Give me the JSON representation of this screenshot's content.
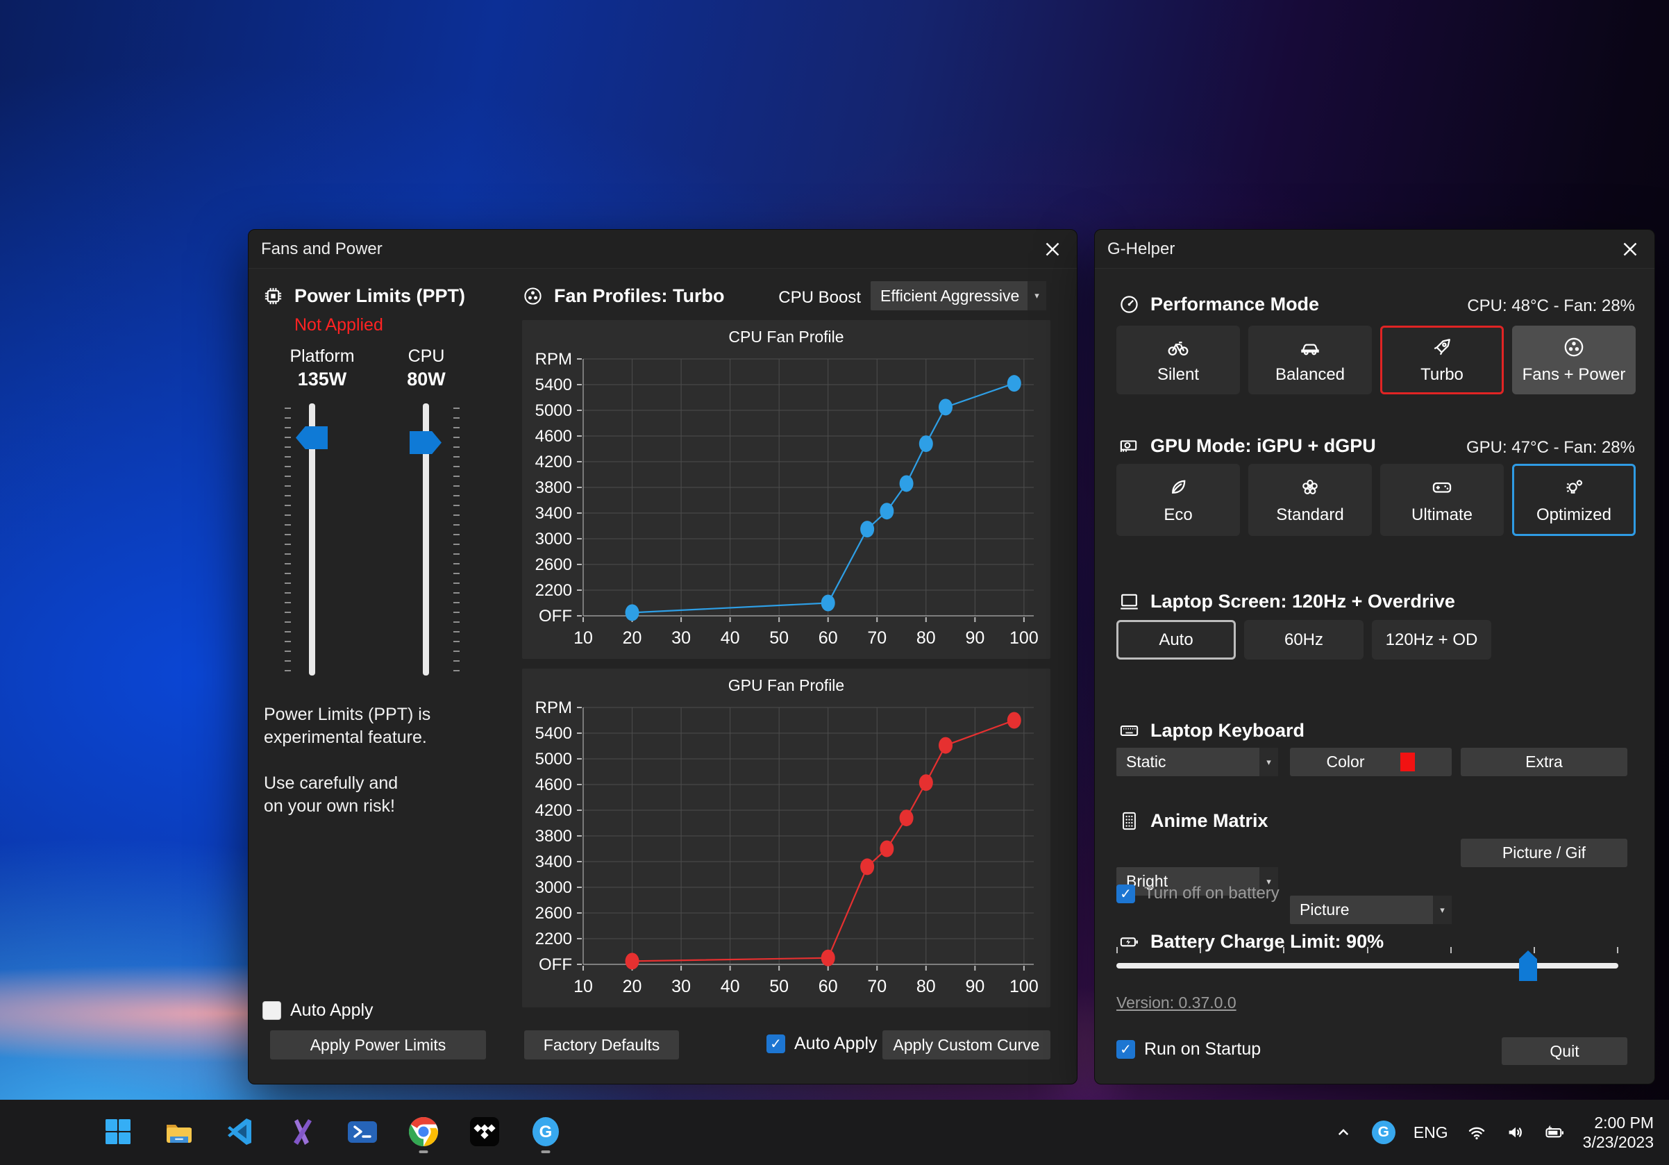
{
  "colors": {
    "accent_blue": "#0f7ad6",
    "selected_red_border": "#e02424",
    "selected_blue_border": "#2f9be4",
    "cpu_curve": "#2e9fe6",
    "gpu_curve": "#e63030",
    "keyboard_color_swatch": "#f21212",
    "warning_red": "#ff2323"
  },
  "fans_window": {
    "title": "Fans and Power",
    "power_limits": {
      "heading": "Power Limits (PPT)",
      "status": "Not Applied",
      "platform_label": "Platform",
      "platform_value": "135W",
      "cpu_label": "CPU",
      "cpu_value": "80W",
      "note_lines": [
        "Power Limits (PPT) is",
        "experimental feature.",
        "",
        "Use carefully and",
        "on your own risk!"
      ],
      "auto_apply_label": "Auto Apply",
      "auto_apply_checked": false,
      "apply_button": "Apply Power Limits"
    },
    "fan_profiles": {
      "heading": "Fan Profiles: Turbo",
      "cpu_boost_label": "CPU Boost",
      "cpu_boost_value": "Efficient Aggressive",
      "factory_defaults_button": "Factory Defaults",
      "auto_apply_label": "Auto Apply",
      "auto_apply_checked": true,
      "apply_curve_button": "Apply Custom Curve"
    }
  },
  "chart_data": [
    {
      "type": "line",
      "title": "CPU Fan Profile",
      "x_ticks": [
        10,
        20,
        30,
        40,
        50,
        60,
        70,
        80,
        90,
        100
      ],
      "y_ticks": [
        {
          "value": 1800,
          "label": "OFF"
        },
        {
          "value": 2200,
          "label": "2200"
        },
        {
          "value": 2600,
          "label": "2600"
        },
        {
          "value": 3000,
          "label": "3000"
        },
        {
          "value": 3400,
          "label": "3400"
        },
        {
          "value": 3800,
          "label": "3800"
        },
        {
          "value": 4200,
          "label": "4200"
        },
        {
          "value": 4600,
          "label": "4600"
        },
        {
          "value": 5000,
          "label": "5000"
        },
        {
          "value": 5400,
          "label": "5400"
        },
        {
          "value": 5800,
          "label": "RPM"
        }
      ],
      "x_range": [
        10,
        102
      ],
      "y_range": [
        1800,
        5800
      ],
      "grid": true,
      "series": [
        {
          "name": "CPU fan curve",
          "color": "#2e9fe6",
          "points": [
            [
              20,
              1850
            ],
            [
              60,
              2000
            ],
            [
              68,
              3150
            ],
            [
              72,
              3430
            ],
            [
              76,
              3860
            ],
            [
              80,
              4480
            ],
            [
              84,
              5050
            ],
            [
              98,
              5420
            ]
          ]
        }
      ]
    },
    {
      "type": "line",
      "title": "GPU Fan Profile",
      "x_ticks": [
        10,
        20,
        30,
        40,
        50,
        60,
        70,
        80,
        90,
        100
      ],
      "y_ticks": [
        {
          "value": 1800,
          "label": "OFF"
        },
        {
          "value": 2200,
          "label": "2200"
        },
        {
          "value": 2600,
          "label": "2600"
        },
        {
          "value": 3000,
          "label": "3000"
        },
        {
          "value": 3400,
          "label": "3400"
        },
        {
          "value": 3800,
          "label": "3800"
        },
        {
          "value": 4200,
          "label": "4200"
        },
        {
          "value": 4600,
          "label": "4600"
        },
        {
          "value": 5000,
          "label": "5000"
        },
        {
          "value": 5400,
          "label": "5400"
        },
        {
          "value": 5800,
          "label": "RPM"
        }
      ],
      "x_range": [
        10,
        102
      ],
      "y_range": [
        1800,
        5800
      ],
      "grid": true,
      "series": [
        {
          "name": "GPU fan curve",
          "color": "#e63030",
          "points": [
            [
              20,
              1850
            ],
            [
              60,
              1900
            ],
            [
              68,
              3320
            ],
            [
              72,
              3600
            ],
            [
              76,
              4080
            ],
            [
              80,
              4630
            ],
            [
              84,
              5210
            ],
            [
              98,
              5600
            ]
          ]
        }
      ]
    }
  ],
  "ghelper_window": {
    "title": "G-Helper",
    "performance": {
      "heading": "Performance Mode",
      "status": "CPU: 48°C  -   Fan: 28%",
      "buttons": [
        {
          "label": "Silent",
          "icon": "bicycle-icon",
          "state": "normal"
        },
        {
          "label": "Balanced",
          "icon": "car-icon",
          "state": "normal"
        },
        {
          "label": "Turbo",
          "icon": "rocket-icon",
          "state": "selected-red"
        },
        {
          "label": "Fans + Power",
          "icon": "fan-icon",
          "state": "active"
        }
      ]
    },
    "gpu_mode": {
      "heading": "GPU Mode: iGPU + dGPU",
      "status": "GPU: 47°C  -   Fan: 28%",
      "buttons": [
        {
          "label": "Eco",
          "icon": "leaf-icon",
          "state": "normal"
        },
        {
          "label": "Standard",
          "icon": "flower-icon",
          "state": "normal"
        },
        {
          "label": "Ultimate",
          "icon": "gamepad-icon",
          "state": "normal"
        },
        {
          "label": "Optimized",
          "icon": "bulb-gear-icon",
          "state": "selected-blue"
        }
      ]
    },
    "screen": {
      "heading": "Laptop Screen: 120Hz + Overdrive",
      "buttons": [
        {
          "label": "Auto",
          "state": "selected-gray"
        },
        {
          "label": "60Hz",
          "state": "normal"
        },
        {
          "label": "120Hz + OD",
          "state": "normal"
        }
      ]
    },
    "keyboard": {
      "heading": "Laptop Keyboard",
      "mode_value": "Static",
      "color_button": "Color",
      "extra_button": "Extra"
    },
    "anime": {
      "heading": "Anime Matrix",
      "brightness_value": "Bright",
      "content_value": "Picture",
      "picture_button": "Picture / Gif",
      "battery_checkbox_label": "Turn off on battery",
      "battery_checkbox_checked": true
    },
    "battery": {
      "heading": "Battery Charge Limit: 90%",
      "value_percent": 90
    },
    "version_link": "Version: 0.37.0.0",
    "startup_checkbox_label": "Run on Startup",
    "startup_checkbox_checked": true,
    "quit_button": "Quit"
  },
  "taskbar": {
    "apps": [
      {
        "name": "start",
        "icon": "windows-start-icon",
        "running": false
      },
      {
        "name": "file-explorer",
        "icon": "folder-icon",
        "running": false
      },
      {
        "name": "vscode",
        "icon": "vscode-icon",
        "running": false
      },
      {
        "name": "visual-studio",
        "icon": "visual-studio-icon",
        "running": false
      },
      {
        "name": "terminal",
        "icon": "terminal-icon",
        "running": false
      },
      {
        "name": "chrome",
        "icon": "chrome-icon",
        "running": true
      },
      {
        "name": "tidal",
        "icon": "tidal-icon",
        "running": false
      },
      {
        "name": "g-helper",
        "icon": "ghelper-icon",
        "running": true
      }
    ],
    "tray": {
      "language": "ENG",
      "time": "2:00 PM",
      "date": "3/23/2023"
    }
  }
}
